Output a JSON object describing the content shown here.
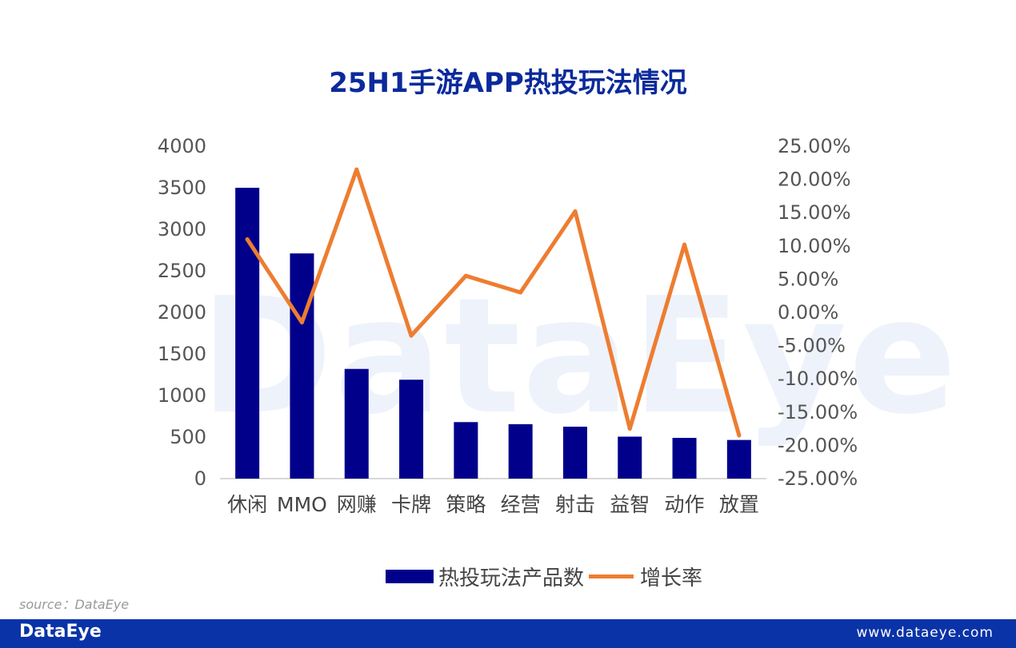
{
  "chart_data": {
    "type": "bar",
    "title": "25H1手游APP热投玩法情况",
    "categories": [
      "休闲",
      "MMO",
      "网赚",
      "卡牌",
      "策略",
      "经营",
      "射击",
      "益智",
      "动作",
      "放置"
    ],
    "series": [
      {
        "name": "热投玩法产品数",
        "type": "bar",
        "axis": "left",
        "color": "#00008b",
        "values": [
          3500,
          2710,
          1320,
          1190,
          680,
          655,
          625,
          505,
          490,
          465
        ]
      },
      {
        "name": "增长率",
        "type": "line",
        "axis": "right",
        "color": "#ed7d31",
        "values": [
          11.0,
          -1.5,
          21.5,
          -3.5,
          5.5,
          3.0,
          15.2,
          -17.5,
          10.2,
          -18.5
        ]
      }
    ],
    "y_left": {
      "min": 0,
      "max": 4000,
      "step": 500,
      "ticks": [
        "0",
        "500",
        "1000",
        "1500",
        "2000",
        "2500",
        "3000",
        "3500",
        "4000"
      ]
    },
    "y_right": {
      "min": -25,
      "max": 25,
      "step": 5,
      "unit": "%",
      "ticks": [
        "-25.00%",
        "-20.00%",
        "-15.00%",
        "-10.00%",
        "-5.00%",
        "0.00%",
        "5.00%",
        "10.00%",
        "15.00%",
        "20.00%",
        "25.00%"
      ]
    },
    "grid": false,
    "legend_position": "bottom"
  },
  "watermark": "DataEye",
  "source": "source：DataEye",
  "footer": {
    "logo": "DataEye",
    "url": "www.dataeye.com"
  }
}
